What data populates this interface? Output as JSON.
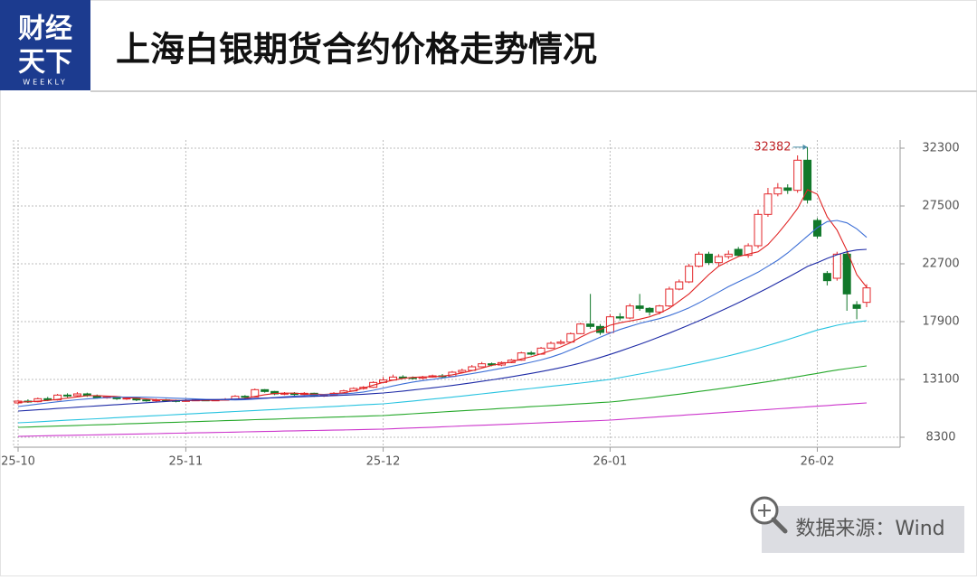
{
  "header": {
    "logo_line1": "财经",
    "logo_line2": "天下",
    "logo_sub": "WEEKLY"
  },
  "chart_data": {
    "type": "candlestick",
    "title": "上海白银期货合约价格走势情况",
    "categories": [
      "25-10",
      null,
      null,
      null,
      null,
      null,
      null,
      null,
      null,
      null,
      null,
      null,
      null,
      null,
      null,
      null,
      null,
      "25-11",
      null,
      null,
      null,
      null,
      null,
      null,
      null,
      null,
      null,
      null,
      null,
      null,
      null,
      null,
      null,
      null,
      null,
      null,
      null,
      "25-12",
      null,
      null,
      null,
      null,
      null,
      null,
      null,
      null,
      null,
      null,
      null,
      null,
      null,
      null,
      null,
      null,
      null,
      null,
      null,
      null,
      null,
      null,
      "26-01",
      null,
      null,
      null,
      null,
      null,
      null,
      null,
      null,
      null,
      null,
      null,
      null,
      null,
      null,
      null,
      null,
      null,
      null,
      null,
      null,
      "26-02",
      null,
      null,
      null,
      null,
      null
    ],
    "open": [
      11150,
      11300,
      11250,
      11500,
      11400,
      11800,
      11750,
      11900,
      11750,
      11600,
      11650,
      11500,
      11550,
      11400,
      11350,
      11400,
      11350,
      11300,
      11350,
      11400,
      11350,
      11400,
      11450,
      11700,
      11650,
      12250,
      12100,
      11900,
      11950,
      11850,
      11950,
      11750,
      11800,
      11950,
      12150,
      12350,
      12450,
      12850,
      13050,
      13300,
      13250,
      13200,
      13300,
      13400,
      13350,
      13700,
      13850,
      14150,
      14400,
      14300,
      14500,
      14700,
      15300,
      15200,
      15700,
      16100,
      16200,
      16900,
      17700,
      17500,
      17000,
      18300,
      18200,
      19200,
      19000,
      18700,
      19200,
      20600,
      21200,
      22500,
      23500,
      22800,
      23300,
      23900,
      23400,
      24200,
      26800,
      28500,
      29000,
      28800,
      31300,
      26300,
      21900,
      21500,
      23500,
      19300,
      19500
    ],
    "high": [
      11400,
      11450,
      11600,
      11650,
      11900,
      11950,
      12050,
      12000,
      11850,
      11750,
      11700,
      11650,
      11600,
      11500,
      11500,
      11480,
      11420,
      11450,
      11480,
      11450,
      11450,
      11550,
      11800,
      11800,
      12350,
      12300,
      12150,
      12050,
      12050,
      12050,
      12000,
      11900,
      12050,
      12250,
      12450,
      12550,
      12950,
      13300,
      13500,
      13450,
      13350,
      13400,
      13500,
      13550,
      13800,
      14000,
      14300,
      14550,
      14500,
      14600,
      14800,
      15400,
      15450,
      15800,
      16250,
      16400,
      17000,
      17800,
      20200,
      17700,
      18500,
      18600,
      19400,
      20200,
      19100,
      19300,
      20800,
      21400,
      22700,
      23700,
      23700,
      23500,
      23800,
      24100,
      24400,
      27200,
      29000,
      29400,
      29300,
      31700,
      32382,
      26500,
      22100,
      23700,
      23700,
      19600,
      21000
    ],
    "low": [
      11050,
      11150,
      11200,
      11300,
      11350,
      11600,
      11650,
      11650,
      11500,
      11500,
      11400,
      11400,
      11300,
      11250,
      11250,
      11280,
      11200,
      11250,
      11300,
      11300,
      11300,
      11350,
      11400,
      11550,
      11600,
      12000,
      11800,
      11800,
      11750,
      11800,
      11650,
      11650,
      11750,
      11900,
      12100,
      12250,
      12400,
      12800,
      13000,
      13150,
      13100,
      13100,
      13250,
      13250,
      13300,
      13650,
      13800,
      14100,
      14200,
      14200,
      14450,
      14650,
      15100,
      15150,
      15650,
      16000,
      16150,
      16850,
      17300,
      16800,
      16900,
      18000,
      18100,
      18800,
      18400,
      18500,
      19100,
      20500,
      21100,
      22400,
      22600,
      22500,
      23100,
      23300,
      23200,
      24000,
      26600,
      28300,
      28500,
      28600,
      27700,
      24800,
      20900,
      21300,
      18800,
      18100,
      19100
    ],
    "close": [
      11300,
      11250,
      11500,
      11400,
      11800,
      11750,
      11900,
      11750,
      11600,
      11650,
      11500,
      11550,
      11400,
      11350,
      11400,
      11350,
      11300,
      11350,
      11400,
      11350,
      11400,
      11450,
      11700,
      11650,
      12250,
      12100,
      11900,
      11950,
      11850,
      11950,
      11750,
      11800,
      11950,
      12150,
      12350,
      12450,
      12850,
      13050,
      13300,
      13250,
      13200,
      13300,
      13400,
      13350,
      13700,
      13850,
      14150,
      14400,
      14300,
      14500,
      14700,
      15300,
      15200,
      15700,
      16100,
      16200,
      16900,
      17700,
      17500,
      17000,
      18300,
      18200,
      19200,
      19000,
      18700,
      19200,
      20600,
      21200,
      22500,
      23500,
      22800,
      23300,
      23500,
      23400,
      24200,
      26800,
      28500,
      29000,
      28800,
      31300,
      28000,
      25000,
      21300,
      23500,
      20200,
      19000,
      20700
    ],
    "up_color": "#e3262a",
    "down_color": "#11782a",
    "series": [
      {
        "color": "#e02424",
        "values": [
          11200,
          11250,
          11300,
          11350,
          11450,
          11550,
          11650,
          11750,
          11760,
          11720,
          11680,
          11600,
          11540,
          11480,
          11420,
          11400,
          11360,
          11340,
          11350,
          11360,
          11370,
          11390,
          11450,
          11520,
          11690,
          11830,
          11930,
          11960,
          11960,
          11910,
          11880,
          11860,
          11900,
          12000,
          12150,
          12380,
          12630,
          12850,
          13040,
          13180,
          13270,
          13300,
          13320,
          13380,
          13480,
          13640,
          13820,
          14040,
          14260,
          14410,
          14550,
          14800,
          14980,
          15220,
          15500,
          15800,
          16150,
          16600,
          17000,
          17250,
          17600,
          17800,
          17950,
          18100,
          18300,
          18600,
          19000,
          19600,
          20200,
          21000,
          21800,
          22500,
          22900,
          23300,
          23500,
          23700,
          24300,
          25200,
          26200,
          27300,
          28850,
          28475,
          26600,
          25500,
          23800,
          21800,
          20750
        ]
      },
      {
        "color": "#3d6fd6",
        "values": [
          10850,
          10950,
          11050,
          11150,
          11250,
          11330,
          11410,
          11480,
          11540,
          11590,
          11620,
          11640,
          11640,
          11620,
          11600,
          11570,
          11540,
          11510,
          11480,
          11450,
          11430,
          11410,
          11400,
          11420,
          11470,
          11530,
          11600,
          11660,
          11710,
          11760,
          11800,
          11830,
          11860,
          11900,
          11960,
          12060,
          12200,
          12380,
          12560,
          12730,
          12880,
          13000,
          13110,
          13220,
          13330,
          13450,
          13580,
          13720,
          13870,
          14020,
          14180,
          14350,
          14530,
          14720,
          14950,
          15220,
          15550,
          15900,
          16250,
          16600,
          16950,
          17250,
          17500,
          17750,
          17950,
          18150,
          18400,
          18700,
          19050,
          19450,
          19900,
          20350,
          20800,
          21200,
          21600,
          22000,
          22500,
          23000,
          23600,
          24300,
          25000,
          25700,
          26200,
          26300,
          26100,
          25600,
          24900
        ]
      },
      {
        "color": "#1d2aa6",
        "values": [
          10475,
          10530,
          10580,
          10635,
          10690,
          10740,
          10795,
          10850,
          10900,
          10955,
          11005,
          11060,
          11110,
          11165,
          11215,
          11270,
          11320,
          11375,
          11390,
          11410,
          11430,
          11450,
          11470,
          11490,
          11520,
          11550,
          11580,
          11610,
          11640,
          11670,
          11700,
          11730,
          11760,
          11790,
          11830,
          11870,
          11920,
          11975,
          12050,
          12130,
          12220,
          12310,
          12400,
          12500,
          12600,
          12710,
          12820,
          12940,
          13060,
          13190,
          13320,
          13460,
          13600,
          13750,
          13910,
          14080,
          14260,
          14460,
          14680,
          14920,
          15180,
          15450,
          15730,
          16020,
          16320,
          16630,
          16950,
          17280,
          17620,
          17970,
          18330,
          18700,
          19080,
          19470,
          19870,
          20280,
          20700,
          21130,
          21570,
          22020,
          22480,
          22800,
          23150,
          23450,
          23700,
          23850,
          23900
        ]
      },
      {
        "color": "#27c3e0",
        "values": [
          9500,
          9540,
          9585,
          9630,
          9670,
          9715,
          9755,
          9800,
          9840,
          9885,
          9925,
          9970,
          10010,
          10055,
          10095,
          10140,
          10180,
          10225,
          10265,
          10310,
          10350,
          10395,
          10435,
          10480,
          10520,
          10565,
          10605,
          10650,
          10690,
          10735,
          10775,
          10820,
          10860,
          10905,
          10945,
          10990,
          11030,
          11075,
          11150,
          11230,
          11310,
          11390,
          11470,
          11550,
          11630,
          11720,
          11810,
          11900,
          11990,
          12080,
          12170,
          12260,
          12350,
          12440,
          12530,
          12620,
          12710,
          12800,
          12900,
          13000,
          13100,
          13250,
          13400,
          13550,
          13700,
          13850,
          14000,
          14170,
          14340,
          14510,
          14690,
          14870,
          15060,
          15260,
          15470,
          15690,
          15920,
          16160,
          16410,
          16670,
          16940,
          17200,
          17400,
          17600,
          17750,
          17880,
          17975
        ]
      },
      {
        "color": "#25a82a",
        "values": [
          9125,
          9150,
          9180,
          9205,
          9230,
          9255,
          9285,
          9310,
          9335,
          9360,
          9390,
          9415,
          9440,
          9470,
          9495,
          9520,
          9545,
          9575,
          9600,
          9625,
          9650,
          9680,
          9705,
          9730,
          9760,
          9785,
          9810,
          9835,
          9865,
          9890,
          9915,
          9940,
          9970,
          9995,
          10020,
          10045,
          10075,
          10100,
          10150,
          10200,
          10250,
          10300,
          10350,
          10400,
          10450,
          10495,
          10540,
          10590,
          10640,
          10690,
          10740,
          10790,
          10840,
          10890,
          10935,
          10980,
          11030,
          11080,
          11130,
          11180,
          11225,
          11310,
          11400,
          11490,
          11580,
          11680,
          11780,
          11880,
          11990,
          12100,
          12210,
          12320,
          12430,
          12550,
          12670,
          12790,
          12920,
          13050,
          13190,
          13330,
          13470,
          13600,
          13750,
          13880,
          14000,
          14110,
          14225
        ]
      },
      {
        "color": "#cc36cc",
        "values": [
          8375,
          8390,
          8410,
          8425,
          8440,
          8455,
          8475,
          8490,
          8505,
          8520,
          8540,
          8555,
          8570,
          8585,
          8600,
          8620,
          8635,
          8650,
          8665,
          8685,
          8700,
          8715,
          8730,
          8750,
          8765,
          8780,
          8795,
          8815,
          8830,
          8845,
          8860,
          8880,
          8895,
          8910,
          8925,
          8945,
          8960,
          8975,
          9005,
          9040,
          9070,
          9105,
          9135,
          9170,
          9200,
          9235,
          9265,
          9300,
          9330,
          9365,
          9395,
          9430,
          9460,
          9495,
          9530,
          9560,
          9595,
          9625,
          9660,
          9690,
          9725,
          9780,
          9835,
          9890,
          9945,
          10000,
          10055,
          10110,
          10165,
          10220,
          10275,
          10330,
          10385,
          10440,
          10495,
          10550,
          10605,
          10660,
          10715,
          10770,
          10825,
          10880,
          10935,
          10990,
          11045,
          11095,
          11150
        ]
      }
    ],
    "ylim": [
      7475,
      32975
    ],
    "yticks": [
      8300,
      13100,
      17900,
      22700,
      27500,
      32300
    ],
    "grid": true
  },
  "source": "数据来源：Wind"
}
